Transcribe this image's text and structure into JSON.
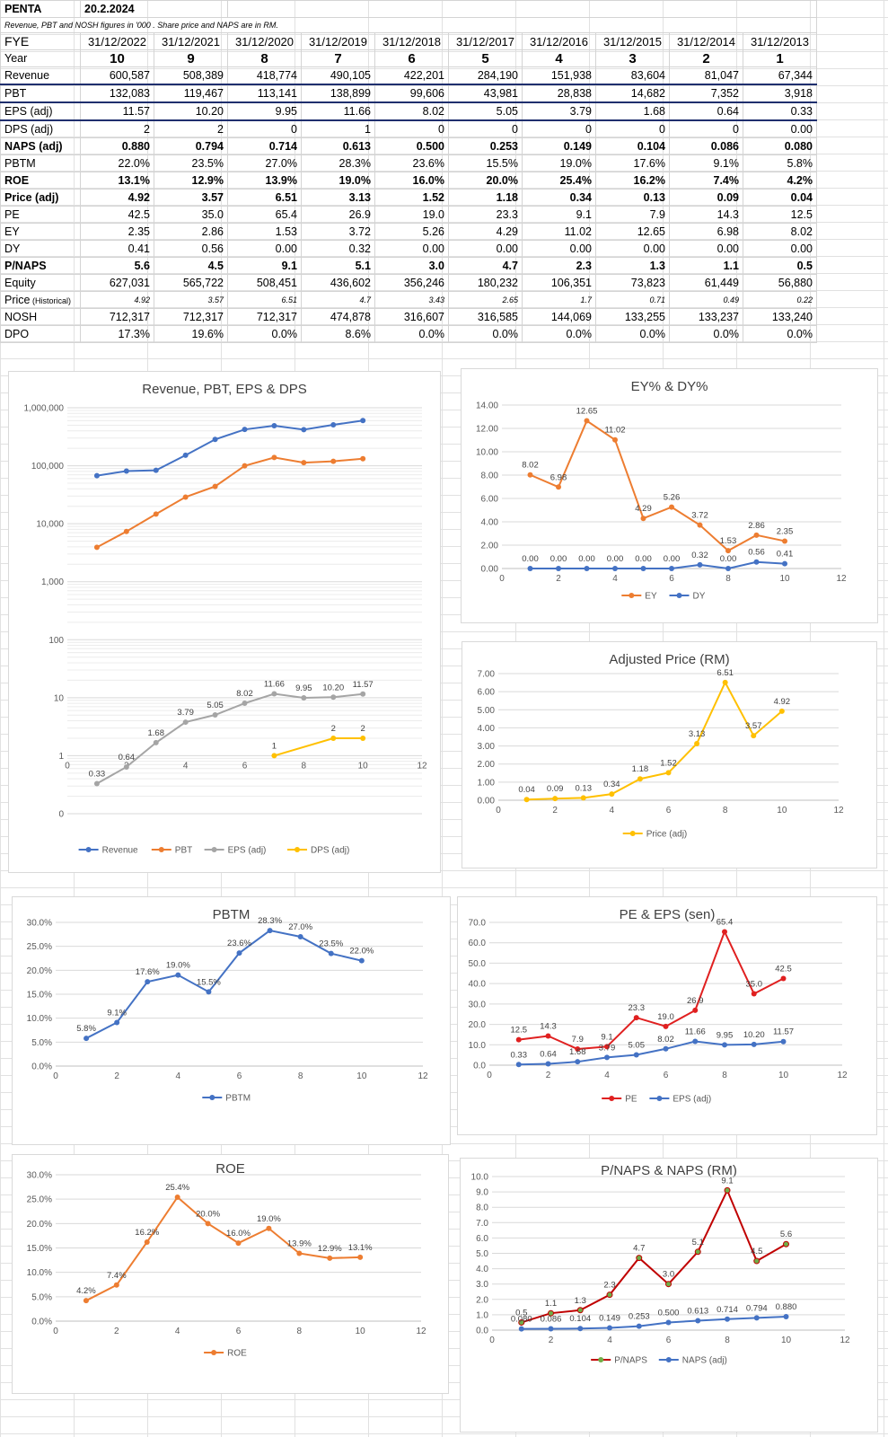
{
  "header": {
    "ticker": "PENTA",
    "date": "20.2.2024",
    "note": "Revenue, PBT and  NOSH  figures in '000  .  Share price  and NAPS are in  RM."
  },
  "table": {
    "fye_label": "FYE",
    "fye": [
      "31/12/2022",
      "31/12/2021",
      "31/12/2020",
      "31/12/2019",
      "31/12/2018",
      "31/12/2017",
      "31/12/2016",
      "31/12/2015",
      "31/12/2014",
      "31/12/2013"
    ],
    "rows": [
      {
        "label": "Year",
        "style": "year",
        "values": [
          "10",
          "9",
          "8",
          "7",
          "6",
          "5",
          "4",
          "3",
          "2",
          "1"
        ]
      },
      {
        "label": "Revenue",
        "style": "rev",
        "values": [
          "600,587",
          "508,389",
          "418,774",
          "490,105",
          "422,201",
          "284,190",
          "151,938",
          "83,604",
          "81,047",
          "67,344"
        ]
      },
      {
        "label": "PBT",
        "style": "under",
        "values": [
          "132,083",
          "119,467",
          "113,141",
          "138,899",
          "99,606",
          "43,981",
          "28,838",
          "14,682",
          "7,352",
          "3,918"
        ]
      },
      {
        "label": "EPS (adj)",
        "style": "under",
        "values": [
          "11.57",
          "10.20",
          "9.95",
          "11.66",
          "8.02",
          "5.05",
          "3.79",
          "1.68",
          "0.64",
          "0.33"
        ]
      },
      {
        "label": "DPS (adj)",
        "style": "",
        "values": [
          "2",
          "2",
          "0",
          "1",
          "0",
          "0",
          "0",
          "0",
          "0",
          "0.00"
        ]
      },
      {
        "label": "NAPS (adj)",
        "style": "b",
        "values": [
          "0.880",
          "0.794",
          "0.714",
          "0.613",
          "0.500",
          "0.253",
          "0.149",
          "0.104",
          "0.086",
          "0.080"
        ]
      },
      {
        "label": "PBTM",
        "style": "",
        "values": [
          "22.0%",
          "23.5%",
          "27.0%",
          "28.3%",
          "23.6%",
          "15.5%",
          "19.0%",
          "17.6%",
          "9.1%",
          "5.8%"
        ]
      },
      {
        "label": "ROE",
        "style": "b",
        "values": [
          "13.1%",
          "12.9%",
          "13.9%",
          "19.0%",
          "16.0%",
          "20.0%",
          "25.4%",
          "16.2%",
          "7.4%",
          "4.2%"
        ]
      },
      {
        "label": "Price (adj)",
        "style": "b",
        "values": [
          "4.92",
          "3.57",
          "6.51",
          "3.13",
          "1.52",
          "1.18",
          "0.34",
          "0.13",
          "0.09",
          "0.04"
        ]
      },
      {
        "label": "PE",
        "style": "",
        "values": [
          "42.5",
          "35.0",
          "65.4",
          "26.9",
          "19.0",
          "23.3",
          "9.1",
          "7.9",
          "14.3",
          "12.5"
        ]
      },
      {
        "label": "EY",
        "style": "",
        "values": [
          "2.35",
          "2.86",
          "1.53",
          "3.72",
          "5.26",
          "4.29",
          "11.02",
          "12.65",
          "6.98",
          "8.02"
        ]
      },
      {
        "label": "DY",
        "style": "",
        "values": [
          "0.41",
          "0.56",
          "0.00",
          "0.32",
          "0.00",
          "0.00",
          "0.00",
          "0.00",
          "0.00",
          "0.00"
        ]
      },
      {
        "label": "P/NAPS",
        "style": "b",
        "values": [
          "5.6",
          "4.5",
          "9.1",
          "5.1",
          "3.0",
          "4.7",
          "2.3",
          "1.3",
          "1.1",
          "0.5"
        ]
      },
      {
        "label": "Equity",
        "style": "",
        "values": [
          "627,031",
          "565,722",
          "508,451",
          "436,602",
          "356,246",
          "180,232",
          "106,351",
          "73,823",
          "61,449",
          "56,880"
        ]
      },
      {
        "label": "Price",
        "label_small": " (Historical)",
        "style": "hist",
        "values": [
          "4.92",
          "3.57",
          "6.51",
          "4.7",
          "3.43",
          "2.65",
          "1.7",
          "0.71",
          "0.49",
          "0.22"
        ]
      },
      {
        "label": "NOSH",
        "style": "",
        "values": [
          "712,317",
          "712,317",
          "712,317",
          "474,878",
          "316,607",
          "316,585",
          "144,069",
          "133,255",
          "133,237",
          "133,240"
        ]
      },
      {
        "label": "DPO",
        "style": "",
        "values": [
          "17.3%",
          "19.6%",
          "0.0%",
          "8.6%",
          "0.0%",
          "0.0%",
          "0.0%",
          "0.0%",
          "0.0%",
          "0.0%"
        ]
      }
    ]
  },
  "chart_data": [
    {
      "id": "rev",
      "type": "line",
      "title": "Revenue, PBT, EPS & DPS",
      "yscale": "log",
      "ylim": [
        0.1,
        1000000
      ],
      "xlim": [
        0,
        12
      ],
      "xticks": [
        0,
        2,
        4,
        6,
        8,
        10,
        12
      ],
      "yticks": [
        {
          "v": 1000000,
          "t": "1,000,000"
        },
        {
          "v": 100000,
          "t": "100,000"
        },
        {
          "v": 10000,
          "t": "10,000"
        },
        {
          "v": 1000,
          "t": "1,000"
        },
        {
          "v": 100,
          "t": "100"
        },
        {
          "v": 10,
          "t": "10"
        },
        {
          "v": 1,
          "t": "1"
        },
        {
          "v": 0.1,
          "t": "0"
        }
      ],
      "legend": "bottom",
      "series": [
        {
          "name": "Revenue",
          "color": "#4472c4",
          "x": [
            1,
            2,
            3,
            4,
            5,
            6,
            7,
            8,
            9,
            10
          ],
          "y": [
            67344,
            81047,
            83604,
            151938,
            284190,
            422201,
            490105,
            418774,
            508389,
            600587
          ],
          "labels": false
        },
        {
          "name": "PBT",
          "color": "#ed7d31",
          "x": [
            1,
            2,
            3,
            4,
            5,
            6,
            7,
            8,
            9,
            10
          ],
          "y": [
            3918,
            7352,
            14682,
            28838,
            43981,
            99606,
            138899,
            113141,
            119467,
            132083
          ],
          "labels": false
        },
        {
          "name": "EPS (adj)",
          "color": "#a5a5a5",
          "x": [
            1,
            2,
            3,
            4,
            5,
            6,
            7,
            8,
            9,
            10
          ],
          "y": [
            0.33,
            0.64,
            1.68,
            3.79,
            5.05,
            8.02,
            11.66,
            9.95,
            10.2,
            11.57
          ],
          "labels": [
            "0.33",
            "0.64",
            "1.68",
            "3.79",
            "5.05",
            "8.02",
            "11.66",
            "9.95",
            "10.20",
            "11.57"
          ]
        },
        {
          "name": "DPS (adj)",
          "color": "#ffc000",
          "x": [
            7,
            9,
            10
          ],
          "y": [
            1,
            2,
            2
          ],
          "labels": [
            "1",
            "2",
            "2"
          ]
        }
      ]
    },
    {
      "id": "ey",
      "type": "line",
      "title": "EY% & DY%",
      "ylim": [
        0,
        14
      ],
      "xlim": [
        0,
        12
      ],
      "xticks": [
        0,
        2,
        4,
        6,
        8,
        10,
        12
      ],
      "yticks": [
        {
          "v": 0,
          "t": "0.00"
        },
        {
          "v": 2,
          "t": "2.00"
        },
        {
          "v": 4,
          "t": "4.00"
        },
        {
          "v": 6,
          "t": "6.00"
        },
        {
          "v": 8,
          "t": "8.00"
        },
        {
          "v": 10,
          "t": "10.00"
        },
        {
          "v": 12,
          "t": "12.00"
        },
        {
          "v": 14,
          "t": "14.00"
        }
      ],
      "legend": "bottom",
      "series": [
        {
          "name": "EY",
          "color": "#ed7d31",
          "x": [
            1,
            2,
            3,
            4,
            5,
            6,
            7,
            8,
            9,
            10
          ],
          "y": [
            8.02,
            6.98,
            12.65,
            11.02,
            4.29,
            5.26,
            3.72,
            1.53,
            2.86,
            2.35
          ],
          "labels": [
            "8.02",
            "6.98",
            "12.65",
            "11.02",
            "4.29",
            "5.26",
            "3.72",
            "1.53",
            "2.86",
            "2.35"
          ]
        },
        {
          "name": "DY",
          "color": "#4472c4",
          "x": [
            1,
            2,
            3,
            4,
            5,
            6,
            7,
            8,
            9,
            10
          ],
          "y": [
            0,
            0,
            0,
            0,
            0,
            0,
            0.32,
            0,
            0.56,
            0.41
          ],
          "labels": [
            "0.00",
            "0.00",
            "0.00",
            "0.00",
            "0.00",
            "0.00",
            "0.32",
            "0.00",
            "0.56",
            "0.41"
          ]
        }
      ]
    },
    {
      "id": "price",
      "type": "line",
      "title": "Adjusted Price (RM)",
      "ylim": [
        0,
        7
      ],
      "xlim": [
        0,
        12
      ],
      "xticks": [
        0,
        2,
        4,
        6,
        8,
        10,
        12
      ],
      "yticks": [
        {
          "v": 0,
          "t": "0.00"
        },
        {
          "v": 1,
          "t": "1.00"
        },
        {
          "v": 2,
          "t": "2.00"
        },
        {
          "v": 3,
          "t": "3.00"
        },
        {
          "v": 4,
          "t": "4.00"
        },
        {
          "v": 5,
          "t": "5.00"
        },
        {
          "v": 6,
          "t": "6.00"
        },
        {
          "v": 7,
          "t": "7.00"
        }
      ],
      "legend": "bottom",
      "series": [
        {
          "name": "Price (adj)",
          "color": "#ffc000",
          "x": [
            1,
            2,
            3,
            4,
            5,
            6,
            7,
            8,
            9,
            10
          ],
          "y": [
            0.04,
            0.09,
            0.13,
            0.34,
            1.18,
            1.52,
            3.13,
            6.51,
            3.57,
            4.92
          ],
          "labels": [
            "0.04",
            "0.09",
            "0.13",
            "0.34",
            "1.18",
            "1.52",
            "3.13",
            "6.51",
            "3.57",
            "4.92"
          ]
        }
      ]
    },
    {
      "id": "pbtm",
      "type": "line",
      "title": "PBTM",
      "ylim": [
        0,
        30
      ],
      "xlim": [
        0,
        12
      ],
      "xticks": [
        0,
        2,
        4,
        6,
        8,
        10,
        12
      ],
      "yticks": [
        {
          "v": 0,
          "t": "0.0%"
        },
        {
          "v": 5,
          "t": "5.0%"
        },
        {
          "v": 10,
          "t": "10.0%"
        },
        {
          "v": 15,
          "t": "15.0%"
        },
        {
          "v": 20,
          "t": "20.0%"
        },
        {
          "v": 25,
          "t": "25.0%"
        },
        {
          "v": 30,
          "t": "30.0%"
        }
      ],
      "legend": "bottom",
      "series": [
        {
          "name": "PBTM",
          "color": "#4472c4",
          "x": [
            1,
            2,
            3,
            4,
            5,
            6,
            7,
            8,
            9,
            10
          ],
          "y": [
            5.8,
            9.1,
            17.6,
            19.0,
            15.5,
            23.6,
            28.3,
            27.0,
            23.5,
            22.0
          ],
          "labels": [
            "5.8%",
            "9.1%",
            "17.6%",
            "19.0%",
            "15.5%",
            "23.6%",
            "28.3%",
            "27.0%",
            "23.5%",
            "22.0%"
          ]
        }
      ]
    },
    {
      "id": "pe",
      "type": "line",
      "title": "PE & EPS (sen)",
      "ylim": [
        0,
        70
      ],
      "xlim": [
        0,
        12
      ],
      "xticks": [
        0,
        2,
        4,
        6,
        8,
        10,
        12
      ],
      "yticks": [
        {
          "v": 0,
          "t": "0.0"
        },
        {
          "v": 10,
          "t": "10.0"
        },
        {
          "v": 20,
          "t": "20.0"
        },
        {
          "v": 30,
          "t": "30.0"
        },
        {
          "v": 40,
          "t": "40.0"
        },
        {
          "v": 50,
          "t": "50.0"
        },
        {
          "v": 60,
          "t": "60.0"
        },
        {
          "v": 70,
          "t": "70.0"
        }
      ],
      "legend": "bottom",
      "series": [
        {
          "name": "PE",
          "color": "#e02020",
          "x": [
            1,
            2,
            3,
            4,
            5,
            6,
            7,
            8,
            9,
            10
          ],
          "y": [
            12.5,
            14.3,
            7.9,
            9.1,
            23.3,
            19.0,
            26.9,
            65.4,
            35.0,
            42.5
          ],
          "labels": [
            "12.5",
            "14.3",
            "7.9",
            "9.1",
            "23.3",
            "19.0",
            "26.9",
            "65.4",
            "35.0",
            "42.5"
          ]
        },
        {
          "name": "EPS (adj)",
          "color": "#4472c4",
          "x": [
            1,
            2,
            3,
            4,
            5,
            6,
            7,
            8,
            9,
            10
          ],
          "y": [
            0.33,
            0.64,
            1.68,
            3.79,
            5.05,
            8.02,
            11.66,
            9.95,
            10.2,
            11.57
          ],
          "labels": [
            "0.33",
            "0.64",
            "1.68",
            "3.79",
            "5.05",
            "8.02",
            "11.66",
            "9.95",
            "10.20",
            "11.57"
          ]
        }
      ]
    },
    {
      "id": "roe",
      "type": "line",
      "title": "ROE",
      "ylim": [
        0,
        30
      ],
      "xlim": [
        0,
        12
      ],
      "xticks": [
        0,
        2,
        4,
        6,
        8,
        10,
        12
      ],
      "yticks": [
        {
          "v": 0,
          "t": "0.0%"
        },
        {
          "v": 5,
          "t": "5.0%"
        },
        {
          "v": 10,
          "t": "10.0%"
        },
        {
          "v": 15,
          "t": "15.0%"
        },
        {
          "v": 20,
          "t": "20.0%"
        },
        {
          "v": 25,
          "t": "25.0%"
        },
        {
          "v": 30,
          "t": "30.0%"
        }
      ],
      "legend": "bottom",
      "series": [
        {
          "name": "ROE",
          "color": "#ed7d31",
          "x": [
            1,
            2,
            3,
            4,
            5,
            6,
            7,
            8,
            9,
            10
          ],
          "y": [
            4.2,
            7.4,
            16.2,
            25.4,
            20.0,
            16.0,
            19.0,
            13.9,
            12.9,
            13.1
          ],
          "labels": [
            "4.2%",
            "7.4%",
            "16.2%",
            "25.4%",
            "20.0%",
            "16.0%",
            "19.0%",
            "13.9%",
            "12.9%",
            "13.1%"
          ]
        }
      ]
    },
    {
      "id": "pnaps",
      "type": "line",
      "title": "P/NAPS & NAPS (RM)",
      "ylim": [
        0,
        10
      ],
      "xlim": [
        0,
        12
      ],
      "xticks": [
        0,
        2,
        4,
        6,
        8,
        10,
        12
      ],
      "yticks": [
        {
          "v": 0,
          "t": "0.0"
        },
        {
          "v": 1,
          "t": "1.0"
        },
        {
          "v": 2,
          "t": "2.0"
        },
        {
          "v": 3,
          "t": "3.0"
        },
        {
          "v": 4,
          "t": "4.0"
        },
        {
          "v": 5,
          "t": "5.0"
        },
        {
          "v": 6,
          "t": "6.0"
        },
        {
          "v": 7,
          "t": "7.0"
        },
        {
          "v": 8,
          "t": "8.0"
        },
        {
          "v": 9,
          "t": "9.0"
        },
        {
          "v": 10,
          "t": "10.0"
        }
      ],
      "legend": "bottom",
      "series": [
        {
          "name": "P/NAPS",
          "color": "#c00000",
          "marker": "#70ad47",
          "x": [
            1,
            2,
            3,
            4,
            5,
            6,
            7,
            8,
            9,
            10
          ],
          "y": [
            0.5,
            1.1,
            1.3,
            2.3,
            4.7,
            3.0,
            5.1,
            9.1,
            4.5,
            5.6
          ],
          "labels": [
            "0.5",
            "1.1",
            "1.3",
            "2.3",
            "4.7",
            "3.0",
            "5.1",
            "9.1",
            "4.5",
            "5.6"
          ]
        },
        {
          "name": "NAPS (adj)",
          "color": "#4472c4",
          "x": [
            1,
            2,
            3,
            4,
            5,
            6,
            7,
            8,
            9,
            10
          ],
          "y": [
            0.08,
            0.086,
            0.104,
            0.149,
            0.253,
            0.5,
            0.613,
            0.714,
            0.794,
            0.88
          ],
          "labels": [
            "0.080",
            "0.086",
            "0.104",
            "0.149",
            "0.253",
            "0.500",
            "0.613",
            "0.714",
            "0.794",
            "0.880"
          ]
        }
      ]
    }
  ]
}
